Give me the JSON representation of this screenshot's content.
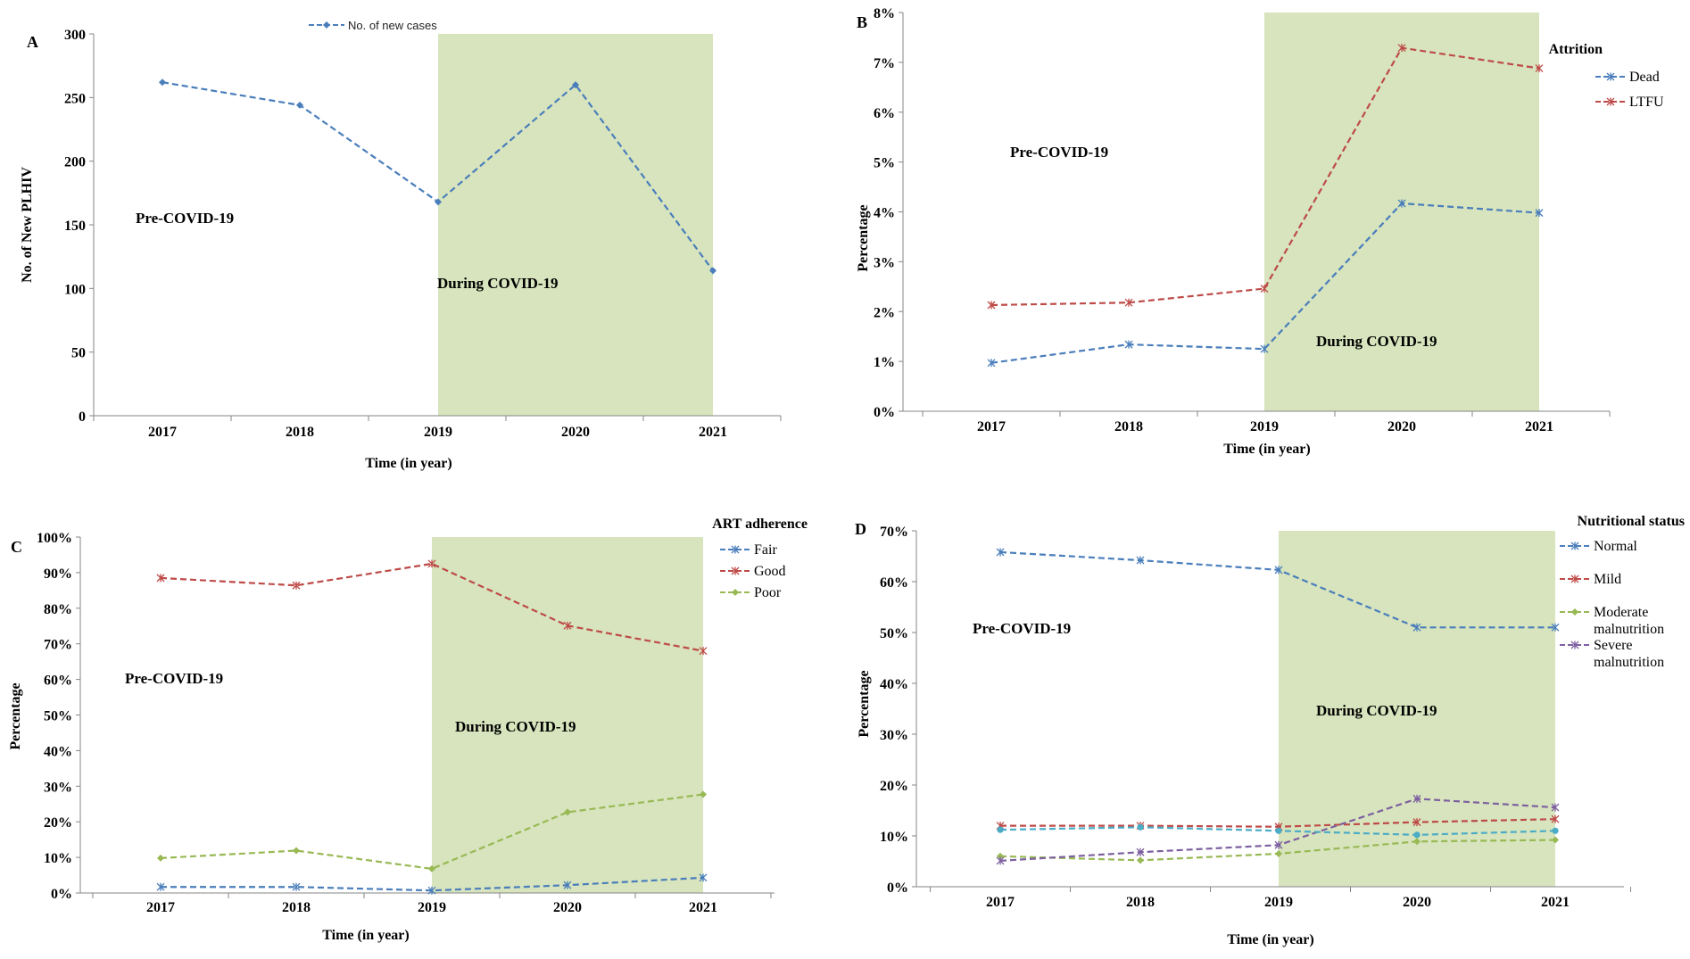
{
  "colors": {
    "blue": "#4A7EBB",
    "red": "#BE4B48",
    "green": "#98B954",
    "purple": "#7D60A0",
    "teal": "#4BACC6",
    "shade": "#D7E4BD",
    "axis": "#868686"
  },
  "chart_data": [
    {
      "id": "A",
      "type": "line",
      "panel_letter": "A",
      "title": "",
      "xlabel": "Time (in year)",
      "ylabel": "No. of New  PLHIV",
      "categories": [
        "2017",
        "2018",
        "2019",
        "2020",
        "2021"
      ],
      "ylim": [
        0,
        300
      ],
      "yticks": [
        0,
        50,
        100,
        150,
        200,
        250,
        300
      ],
      "ytick_format": "int",
      "shade_from_category": "2019",
      "legend_title": "",
      "legend_position": "top-center",
      "annotations": {
        "pre": "Pre-COVID-19",
        "during": "During COVID-19"
      },
      "series": [
        {
          "name": "No. of new cases",
          "color": "blue",
          "marker": "diamond",
          "values": [
            262,
            244,
            168,
            260,
            114
          ]
        }
      ]
    },
    {
      "id": "B",
      "type": "line",
      "panel_letter": "B",
      "title": "",
      "xlabel": "Time (in year)",
      "ylabel": "Percentage",
      "categories": [
        "2017",
        "2018",
        "2019",
        "2020",
        "2021"
      ],
      "ylim": [
        0,
        8
      ],
      "yticks": [
        0,
        1,
        2,
        3,
        4,
        5,
        6,
        7,
        8
      ],
      "ytick_format": "percent",
      "shade_from_category": "2019",
      "legend_title": "Attrition",
      "legend_position": "top-right",
      "annotations": {
        "pre": "Pre-COVID-19",
        "during": "During COVID-19"
      },
      "series": [
        {
          "name": "Dead",
          "color": "blue",
          "marker": "star",
          "values": [
            0.97,
            1.34,
            1.25,
            4.17,
            3.98
          ]
        },
        {
          "name": "LTFU",
          "color": "red",
          "marker": "star",
          "values": [
            2.13,
            2.18,
            2.46,
            7.29,
            6.88
          ]
        }
      ]
    },
    {
      "id": "C",
      "type": "line",
      "panel_letter": "C",
      "title": "",
      "xlabel": "Time (in year)",
      "ylabel": "Percentage",
      "categories": [
        "2017",
        "2018",
        "2019",
        "2020",
        "2021"
      ],
      "ylim": [
        0,
        100
      ],
      "yticks": [
        0,
        10,
        20,
        30,
        40,
        50,
        60,
        70,
        80,
        90,
        100
      ],
      "ytick_format": "percent",
      "shade_from_category": "2019",
      "legend_title": "ART adherence",
      "legend_position": "top-right",
      "annotations": {
        "pre": "Pre-COVID-19",
        "during": "During COVID-19"
      },
      "series": [
        {
          "name": "Fair",
          "color": "blue",
          "marker": "star",
          "values": [
            1.7,
            1.7,
            0.7,
            2.2,
            4.3
          ]
        },
        {
          "name": "Good",
          "color": "red",
          "marker": "star",
          "values": [
            88.5,
            86.4,
            92.5,
            75.1,
            68.0
          ]
        },
        {
          "name": "Poor",
          "color": "green",
          "marker": "diamond",
          "values": [
            9.8,
            11.9,
            6.8,
            22.7,
            27.7
          ]
        }
      ]
    },
    {
      "id": "D",
      "type": "line",
      "panel_letter": "D",
      "title": "",
      "xlabel": "Time (in year)",
      "ylabel": "Percentage",
      "categories": [
        "2017",
        "2018",
        "2019",
        "2020",
        "2021"
      ],
      "ylim": [
        0,
        70
      ],
      "yticks": [
        0,
        10,
        20,
        30,
        40,
        50,
        60,
        70
      ],
      "ytick_format": "percent",
      "shade_from_category": "2019",
      "legend_title": "Nutritional status",
      "legend_position": "top-right",
      "annotations": {
        "pre": "Pre-COVID-19",
        "during": "During COVID-19"
      },
      "series": [
        {
          "name": "Normal",
          "color": "blue",
          "marker": "star",
          "values": [
            65.8,
            64.2,
            62.3,
            51.0,
            51.0
          ]
        },
        {
          "name": "Mild",
          "color": "red",
          "marker": "star",
          "values": [
            12.0,
            12.0,
            11.8,
            12.7,
            13.3
          ]
        },
        {
          "name": "Moderate malnutrition",
          "color": "green",
          "marker": "diamond",
          "values": [
            6.0,
            5.2,
            6.5,
            8.9,
            9.2
          ]
        },
        {
          "name": "Severe malnutrition",
          "color": "purple",
          "marker": "star",
          "values": [
            5.1,
            6.8,
            8.2,
            17.3,
            15.6
          ]
        },
        {
          "name": "",
          "color": "teal",
          "marker": "circle",
          "values": [
            11.2,
            11.7,
            11.0,
            10.2,
            11.0
          ]
        }
      ]
    }
  ]
}
